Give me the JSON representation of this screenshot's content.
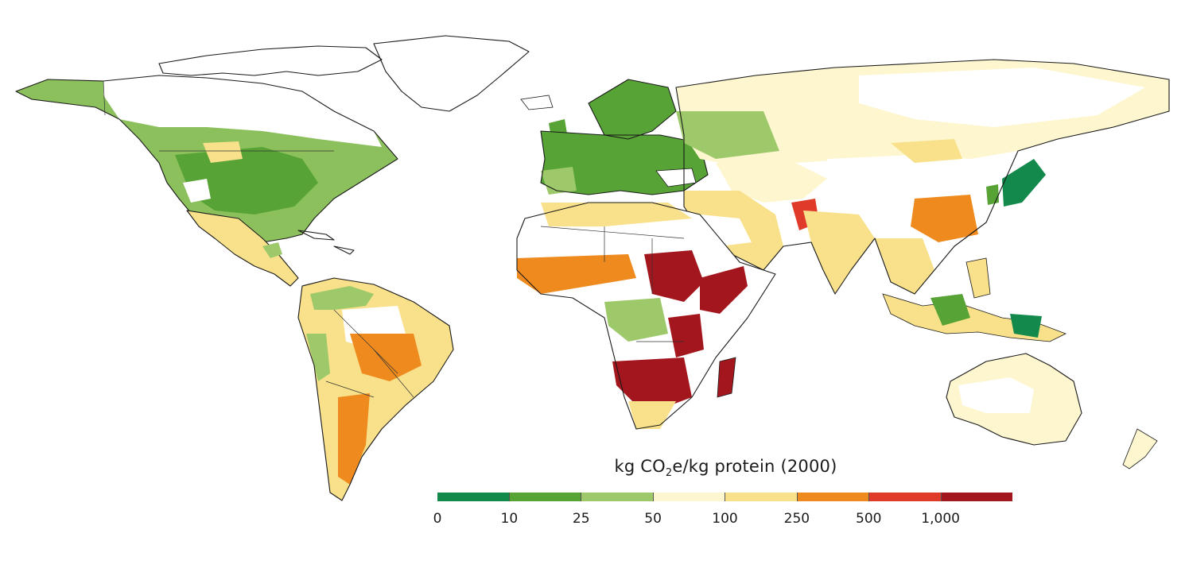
{
  "legend": {
    "title_prefix": "kg CO",
    "title_sub": "2",
    "title_suffix": "e/kg protein (2000)",
    "classes": [
      {
        "from": "0",
        "to": "10",
        "color": "#138a4b"
      },
      {
        "from": "10",
        "to": "25",
        "color": "#57a336"
      },
      {
        "from": "25",
        "to": "50",
        "color": "#9dc96b"
      },
      {
        "from": "50",
        "to": "100",
        "color": "#fdf6cf"
      },
      {
        "from": "100",
        "to": "250",
        "color": "#f8e18a"
      },
      {
        "from": "250",
        "to": "500",
        "color": "#ee8a1e"
      },
      {
        "from": "500",
        "to": "1,000",
        "color": "#df3a2a"
      },
      {
        "from": "1,000",
        "to": "",
        "color": "#a3161e"
      }
    ],
    "ticks": [
      "0",
      "10",
      "25",
      "50",
      "100",
      "250",
      "500",
      "1,000"
    ]
  },
  "map": {
    "region_labels": []
  }
}
